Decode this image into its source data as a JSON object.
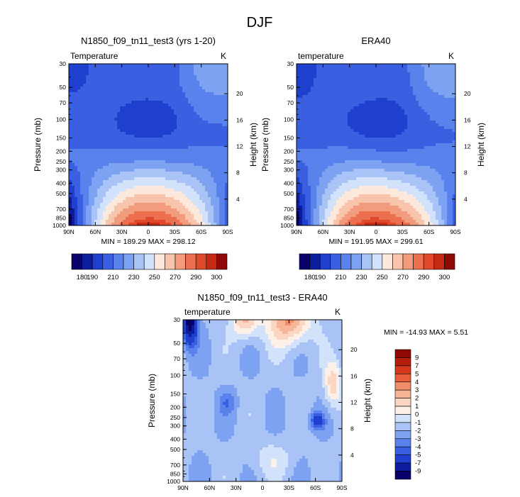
{
  "figure_title": "DJF",
  "chart_data": [
    {
      "type": "heatmap",
      "title": "N1850_f09_tn11_test3 (yrs 1-20)",
      "left_label": "Temperature",
      "units": "K",
      "xlabel": "",
      "ylabel": "Pressure (mb)",
      "ylabel_right": "Height (km)",
      "x_ticks": [
        "90N",
        "60N",
        "30N",
        "0",
        "30S",
        "60S",
        "90S"
      ],
      "y_ticks": [
        "30",
        "50",
        "70",
        "100",
        "150",
        "200",
        "250",
        "300",
        "400",
        "500",
        "700",
        "850",
        "1000"
      ],
      "y_ticks_right": [
        "20",
        "16",
        "12",
        "8",
        "4"
      ],
      "min_max_text": "MIN = 189.29  MAX = 298.12",
      "min": 189.29,
      "max": 298.12,
      "colorbar_labels": [
        "180",
        "190",
        "210",
        "230",
        "250",
        "270",
        "290",
        "300"
      ],
      "grid": false
    },
    {
      "type": "heatmap",
      "title": "ERA40",
      "left_label": "temperature",
      "units": "K",
      "xlabel": "",
      "ylabel": "Pressure (mb)",
      "ylabel_right": "Height (km)",
      "x_ticks": [
        "90N",
        "60N",
        "30N",
        "0",
        "30S",
        "60S",
        "90S"
      ],
      "y_ticks": [
        "30",
        "50",
        "70",
        "100",
        "150",
        "200",
        "250",
        "300",
        "400",
        "500",
        "700",
        "850",
        "1000"
      ],
      "y_ticks_right": [
        "20",
        "16",
        "12",
        "8",
        "4"
      ],
      "min_max_text": "MIN = 191.95  MAX = 299.61",
      "min": 191.95,
      "max": 299.61,
      "colorbar_labels": [
        "180",
        "190",
        "210",
        "230",
        "250",
        "270",
        "290",
        "300"
      ],
      "grid": false
    },
    {
      "type": "heatmap",
      "title": "N1850_f09_tn11_test3 - ERA40",
      "left_label": "temperature",
      "units": "K",
      "xlabel": "",
      "ylabel": "Pressure (mb)",
      "ylabel_right": "Height (km)",
      "x_ticks": [
        "90N",
        "60N",
        "30N",
        "0",
        "30S",
        "60S",
        "90S"
      ],
      "y_ticks": [
        "30",
        "50",
        "70",
        "100",
        "150",
        "200",
        "250",
        "300",
        "400",
        "500",
        "700",
        "850",
        "1000"
      ],
      "y_ticks_right": [
        "20",
        "16",
        "12",
        "8",
        "4"
      ],
      "min_max_text": "MIN = -14.93  MAX =   5.51",
      "min": -14.93,
      "max": 5.51,
      "colorbar_labels": [
        "9",
        "7",
        "5",
        "4",
        "3",
        "2",
        "1",
        "0",
        "-1",
        "-2",
        "-3",
        "-4",
        "-5",
        "-7",
        "-9"
      ],
      "grid": false
    }
  ],
  "colors": {
    "abs_scale": [
      "#08006b",
      "#0b1d9c",
      "#1f3fcf",
      "#3a5fe0",
      "#5a82ec",
      "#7ea2f2",
      "#a9c3f6",
      "#d3e2fb",
      "#fde8dc",
      "#f9c4ac",
      "#f39c7d",
      "#ec7050",
      "#e04a2a",
      "#c42a14",
      "#8f0a06"
    ],
    "diff_scale": [
      "#08006b",
      "#0b1d9c",
      "#1f3fcf",
      "#3a5fe0",
      "#5a82ec",
      "#7ea2f2",
      "#a9c3f6",
      "#d3e2fb",
      "#fdf0e8",
      "#fbd6c2",
      "#f7b497",
      "#f08d6a",
      "#e75f3b",
      "#d4391b",
      "#b51d0c",
      "#8f0a06"
    ]
  }
}
